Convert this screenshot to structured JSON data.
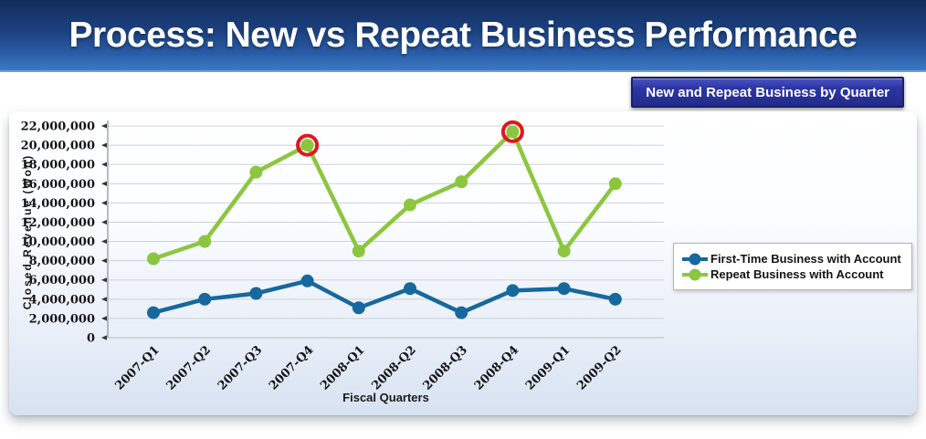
{
  "header": {
    "title": "Process: New vs Repeat Business Performance",
    "badge": "New and Repeat Business by Quarter"
  },
  "colors": {
    "banner_top": "#122c5c",
    "banner_bottom": "#3d78c4",
    "badge_bg": "#2c35a3",
    "badge_border": "#161f6d",
    "gridline": "#cdd2da",
    "axis_line": "#8a909a",
    "highlight_ring": "#e0181c"
  },
  "chart_data": {
    "type": "line",
    "title": "New and Repeat Business by Quarter",
    "categories": [
      "2007-Q1",
      "2007-Q2",
      "2007-Q3",
      "2007-Q4",
      "2008-Q1",
      "2008-Q2",
      "2008-Q3",
      "2008-Q4",
      "2009-Q1",
      "2009-Q2"
    ],
    "series": [
      {
        "name": "First-Time Business with Account",
        "color": "#16689e",
        "values": [
          2600000,
          4000000,
          4600000,
          5900000,
          3100000,
          5100000,
          2600000,
          4900000,
          5100000,
          4000000
        ]
      },
      {
        "name": "Repeat Business with Account",
        "color": "#8cc63f",
        "values": [
          8200000,
          10000000,
          17200000,
          20000000,
          9000000,
          13800000,
          16200000,
          21400000,
          9000000,
          16000000
        ],
        "highlighted_points": [
          "2007-Q4",
          "2008-Q4"
        ]
      }
    ],
    "xlabel": "Fiscal Quarters",
    "ylabel": "Closed Revenue (Won)",
    "ylim": [
      0,
      22000000
    ],
    "ytick_step": 2000000,
    "grid": true,
    "legend_position": "right"
  }
}
